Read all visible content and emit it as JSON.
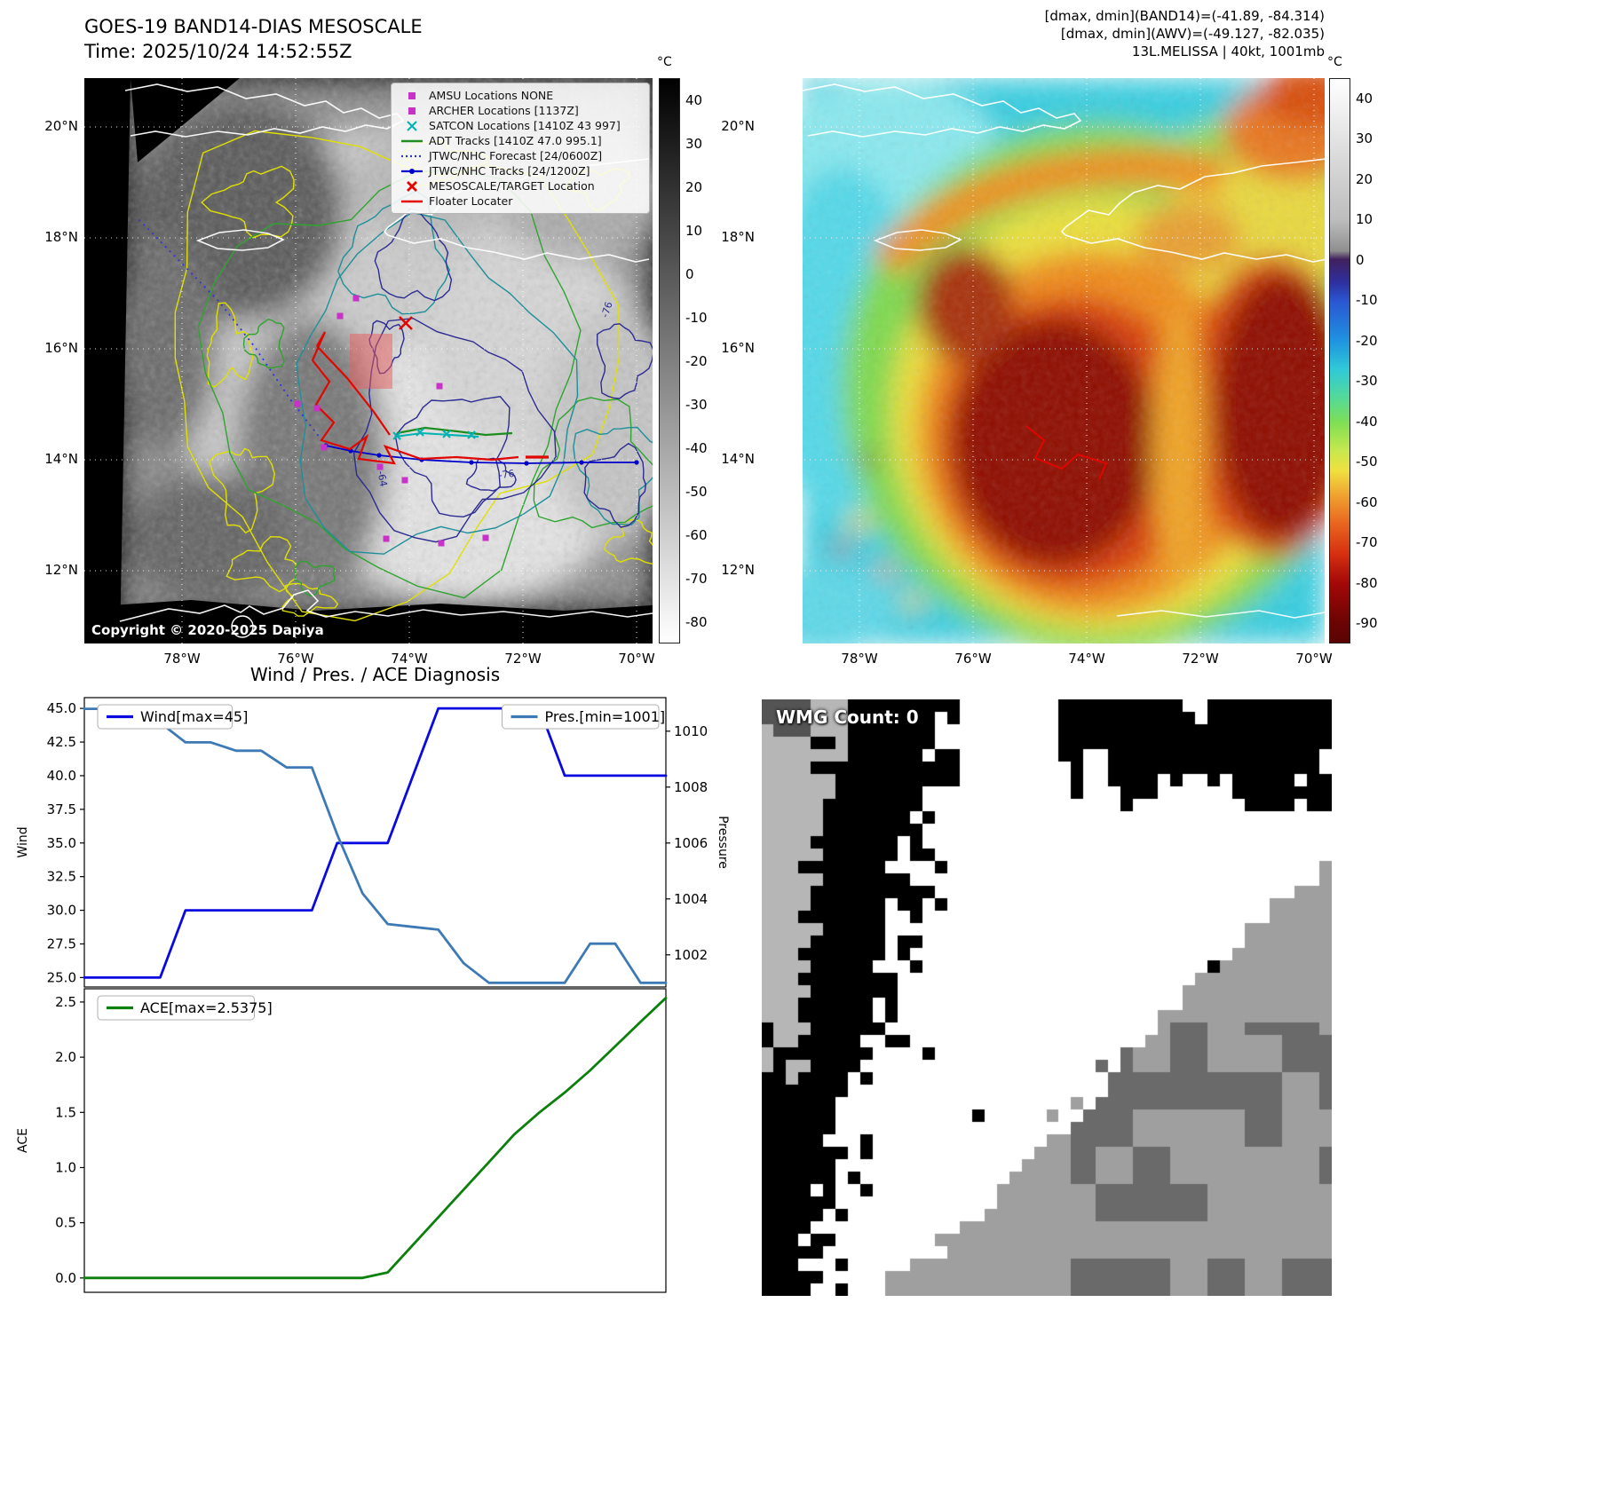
{
  "left_panel": {
    "title": "GOES-19 BAND14-DIAS MESOSCALE",
    "time_line": "Time: 2025/10/24 14:52:55Z",
    "copyright": "Copyright © 2020-2025 Dapiya",
    "colorbar": {
      "unit": "°C",
      "ticks": [
        40,
        30,
        20,
        10,
        0,
        -10,
        -20,
        -30,
        -40,
        -50,
        -60,
        -70,
        -80
      ],
      "vmin": -85,
      "vmax": 45,
      "gradient": [
        [
          "0%",
          "#000000"
        ],
        [
          "100%",
          "#ffffff"
        ]
      ]
    },
    "lat_labels": [
      "20°N",
      "18°N",
      "16°N",
      "14°N",
      "12°N"
    ],
    "lon_labels": [
      "78°W",
      "76°W",
      "74°W",
      "72°W",
      "70°W"
    ],
    "contour_labels": [
      "-76",
      "-76",
      "-64"
    ],
    "legend": [
      {
        "label": "AMSU Locations NONE",
        "marker": "square",
        "color": "#c832c8"
      },
      {
        "label": "ARCHER Locations [1137Z]",
        "marker": "square",
        "color": "#c832c8"
      },
      {
        "label": "SATCON Locations [1410Z 43 997]",
        "marker": "x",
        "color": "#00b2b2"
      },
      {
        "label": "ADT Tracks [1410Z 47.0 995.1]",
        "marker": "line",
        "color": "#1e8c1e"
      },
      {
        "label": "JTWC/NHC Forecast [24/0600Z]",
        "marker": "dotted",
        "color": "#3232dc"
      },
      {
        "label": "JTWC/NHC Tracks [24/1200Z]",
        "marker": "line-dot",
        "color": "#0000cd"
      },
      {
        "label": "MESOSCALE/TARGET Location",
        "marker": "x-bold",
        "color": "#e10600"
      },
      {
        "label": "Floater Locater",
        "marker": "line",
        "color": "#e10600"
      }
    ]
  },
  "right_panel": {
    "header_lines": [
      "[dmax, dmin](BAND14)=(-41.89, -84.314)",
      "[dmax, dmin](AWV)=(-49.127, -82.035)",
      "13L.MELISSA | 40kt, 1001mb"
    ],
    "colorbar": {
      "unit": "°C",
      "ticks": [
        40,
        30,
        20,
        10,
        0,
        -10,
        -20,
        -30,
        -40,
        -50,
        -60,
        -70,
        -80,
        -90
      ],
      "vmin": -95,
      "vmax": 45,
      "gradient": [
        [
          "0%",
          "#ffffff"
        ],
        [
          "25%",
          "#bdbdbd"
        ],
        [
          "30.5%",
          "#8f8f8f"
        ],
        [
          "32%",
          "#41205e"
        ],
        [
          "36%",
          "#2f2f9e"
        ],
        [
          "39.5%",
          "#2a57d2"
        ],
        [
          "46.5%",
          "#1f93e0"
        ],
        [
          "51.5%",
          "#2fc9d8"
        ],
        [
          "56%",
          "#4fd8a0"
        ],
        [
          "61%",
          "#7fdf55"
        ],
        [
          "66%",
          "#c8e84e"
        ],
        [
          "69.5%",
          "#f0e040"
        ],
        [
          "74%",
          "#f0a030"
        ],
        [
          "79%",
          "#e86420"
        ],
        [
          "84%",
          "#d83210"
        ],
        [
          "89.5%",
          "#a30808"
        ],
        [
          "96.5%",
          "#6b0404"
        ],
        [
          "100%",
          "#5c0303"
        ]
      ]
    },
    "lat_labels": [
      "20°N",
      "18°N",
      "16°N",
      "14°N",
      "12°N"
    ],
    "lon_labels": [
      "78°W",
      "76°W",
      "74°W",
      "72°W",
      "70°W"
    ]
  },
  "wmg_panel": {
    "count_label": "WMG Count: 0"
  },
  "chart_data": [
    {
      "type": "line",
      "title": "Wind / Pres. / ACE Diagnosis",
      "x": [
        0,
        1,
        2,
        3,
        4,
        5,
        6,
        7,
        8,
        9,
        10,
        11,
        12,
        13,
        14,
        15,
        16,
        17,
        18,
        19,
        20,
        21,
        22,
        23
      ],
      "series": [
        {
          "name": "Wind[max=45]",
          "yaxis": "left",
          "color": "#0a0ae0",
          "values": [
            25,
            25,
            25,
            25,
            30,
            30,
            30,
            30,
            30,
            30,
            35,
            35,
            35,
            40,
            45,
            45,
            45,
            45,
            45,
            40,
            40,
            40,
            40,
            40
          ]
        },
        {
          "name": "Pres.[min=1001]",
          "yaxis": "right",
          "color": "#3d7ab5",
          "values": [
            1010.8,
            1010.8,
            1010.3,
            1010.3,
            1009.6,
            1009.6,
            1009.3,
            1009.3,
            1008.7,
            1008.7,
            1006.3,
            1004.2,
            1003.1,
            1003.0,
            1002.9,
            1001.7,
            1001,
            1001,
            1001,
            1001,
            1002.4,
            1002.4,
            1001,
            1001
          ]
        }
      ],
      "ylabel_left": "Wind",
      "ylabel_right": "Pressure",
      "yticks_left": [
        "45.0",
        "42.5",
        "40.0",
        "37.5",
        "35.0",
        "32.5",
        "30.0",
        "27.5",
        "25.0"
      ],
      "yticks_right": [
        "1010",
        "1008",
        "1006",
        "1004",
        "1002"
      ],
      "ylim_left": [
        24.3,
        45.8
      ],
      "ylim_right": [
        1000.85,
        1011.2
      ],
      "legend_position": "top"
    },
    {
      "type": "line",
      "x": [
        0,
        1,
        2,
        3,
        4,
        5,
        6,
        7,
        8,
        9,
        10,
        11,
        12,
        13,
        14,
        15,
        16,
        17,
        18,
        19,
        20,
        21,
        22,
        23
      ],
      "series": [
        {
          "name": "ACE[max=2.5375]",
          "yaxis": "left",
          "color": "#0c800c",
          "values": [
            0,
            0,
            0,
            0,
            0,
            0,
            0,
            0,
            0,
            0,
            0,
            0,
            0.05,
            0.3,
            0.55,
            0.8,
            1.05,
            1.3,
            1.5,
            1.68,
            1.88,
            2.1,
            2.32,
            2.5375
          ]
        }
      ],
      "ylabel_left": "ACE",
      "yticks_left": [
        "2.5",
        "2.0",
        "1.5",
        "1.0",
        "0.5",
        "0.0"
      ],
      "ylim_left": [
        -0.13,
        2.62
      ]
    }
  ]
}
